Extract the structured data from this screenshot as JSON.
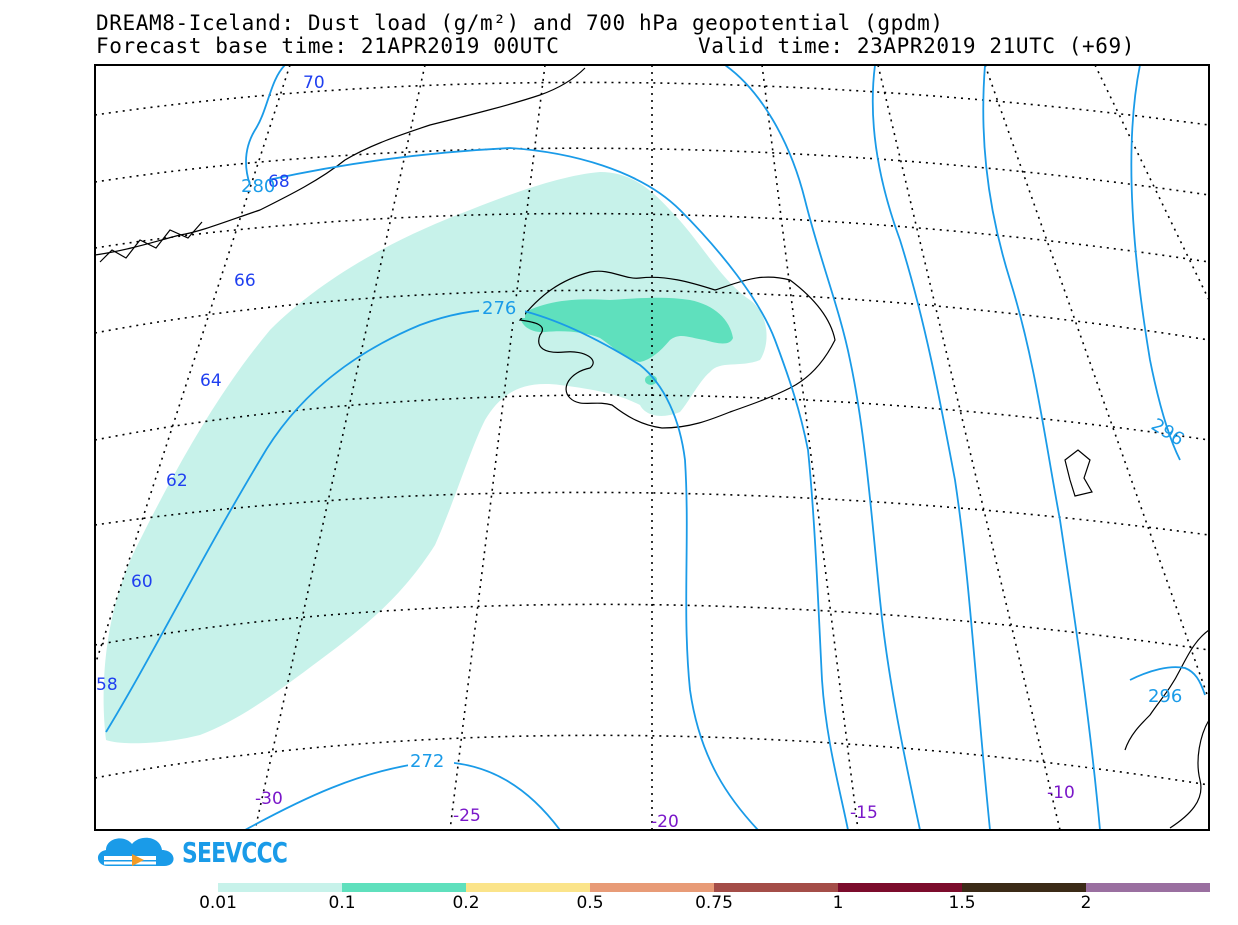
{
  "title": {
    "line1": "DREAM8-Iceland: Dust load (g/m²) and 700 hPa geopotential (gpdm)",
    "base_time": "Forecast base time: 21APR2019 00UTC",
    "valid_time": "Valid time: 23APR2019 21UTC (+69)"
  },
  "map": {
    "latitude_labels": [
      "70",
      "68",
      "66",
      "64",
      "62",
      "60",
      "58"
    ],
    "longitude_labels": [
      "-30",
      "-25",
      "-20",
      "-15",
      "-10"
    ],
    "contour_labels": [
      "280",
      "276",
      "272",
      "296",
      "296"
    ],
    "dust_fill_colors": {
      "low": "#c7f2ea",
      "mid": "#5fe0bd"
    },
    "contour_color": "#1a9be8"
  },
  "logo": {
    "text": "SEEVCCC",
    "icon": "cloud-logo-icon"
  },
  "legend": {
    "labels": [
      "0.01",
      "0.1",
      "0.2",
      "0.5",
      "0.75",
      "1",
      "1.5",
      "2"
    ],
    "colors": [
      "#c7f2ea",
      "#5fe0bd",
      "#fbe48a",
      "#e89b77",
      "#a44d48",
      "#7c0c2c",
      "#3b2a17",
      "#9a6fa0"
    ]
  }
}
